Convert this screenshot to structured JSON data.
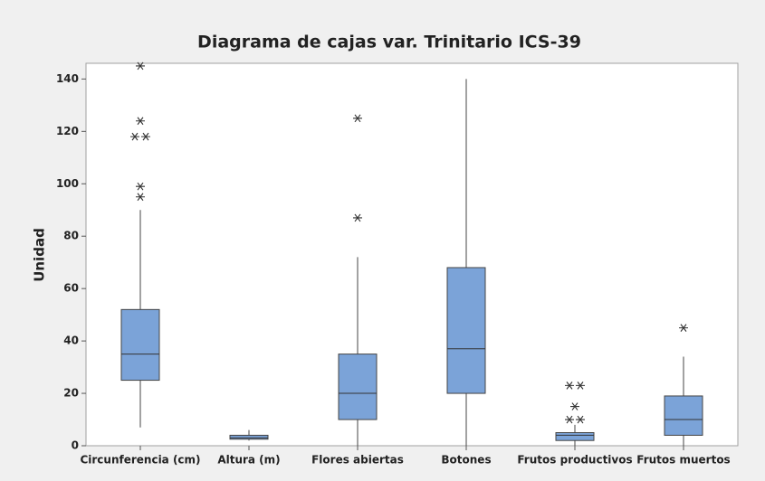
{
  "chart_data": {
    "type": "box",
    "title": "Diagrama de cajas var. Trinitario ICS-39",
    "y_label": "Unidad",
    "categories": [
      "Circunferencia (cm)",
      "Altura (m)",
      "Flores abiertas",
      "Botones",
      "Frutos productivos",
      "Frutos muertos"
    ],
    "min": [
      7,
      2,
      0,
      0,
      0,
      0
    ],
    "q1": [
      25,
      2.5,
      10,
      20,
      2,
      4
    ],
    "median": [
      35,
      3,
      20,
      37,
      4,
      10
    ],
    "q3": [
      52,
      4,
      35,
      68,
      5,
      19
    ],
    "max": [
      90,
      6,
      72,
      140,
      8,
      34
    ],
    "outliers": [
      [
        95,
        99,
        118,
        118,
        124,
        145
      ],
      [],
      [
        87,
        125
      ],
      [],
      [
        10,
        10,
        15,
        23,
        23
      ],
      [
        45
      ]
    ],
    "color": "#7ba3d8",
    "ylim": [
      0,
      146
    ],
    "yticks": [
      0,
      20,
      40,
      60,
      80,
      100,
      120,
      140
    ]
  }
}
